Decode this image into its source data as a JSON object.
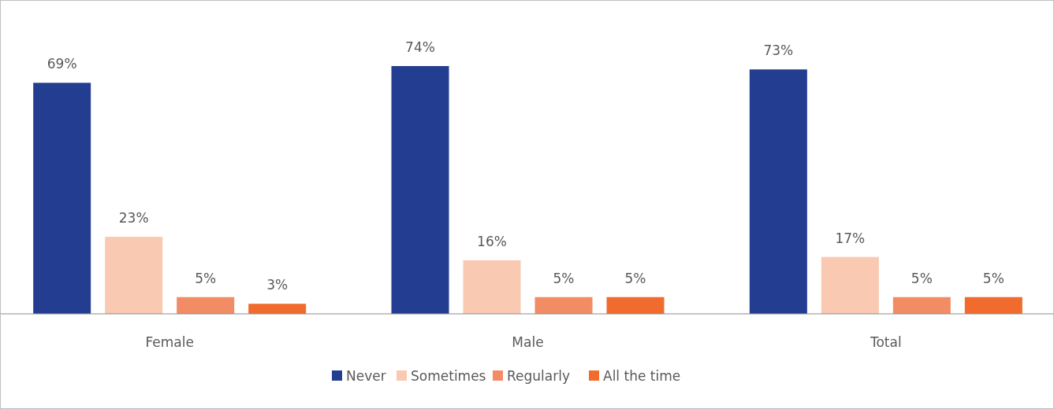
{
  "chart_data": {
    "type": "bar",
    "categories": [
      "Female",
      "Male",
      "Total"
    ],
    "series": [
      {
        "name": "Never",
        "color": "#233d91",
        "values": [
          69,
          74,
          73
        ],
        "value_labels": [
          "69%",
          "74%",
          "73%"
        ]
      },
      {
        "name": "Sometimes",
        "color": "#f9c9b1",
        "values": [
          23,
          16,
          17
        ],
        "value_labels": [
          "23%",
          "16%",
          "17%"
        ]
      },
      {
        "name": "Regularly",
        "color": "#f28c65",
        "values": [
          5,
          5,
          5
        ],
        "value_labels": [
          "5%",
          "5%",
          "5%"
        ]
      },
      {
        "name": "All the time",
        "color": "#f26b2e",
        "values": [
          3,
          5,
          5
        ],
        "value_labels": [
          "3%",
          "5%",
          "5%"
        ]
      }
    ],
    "legend": "bottom"
  }
}
